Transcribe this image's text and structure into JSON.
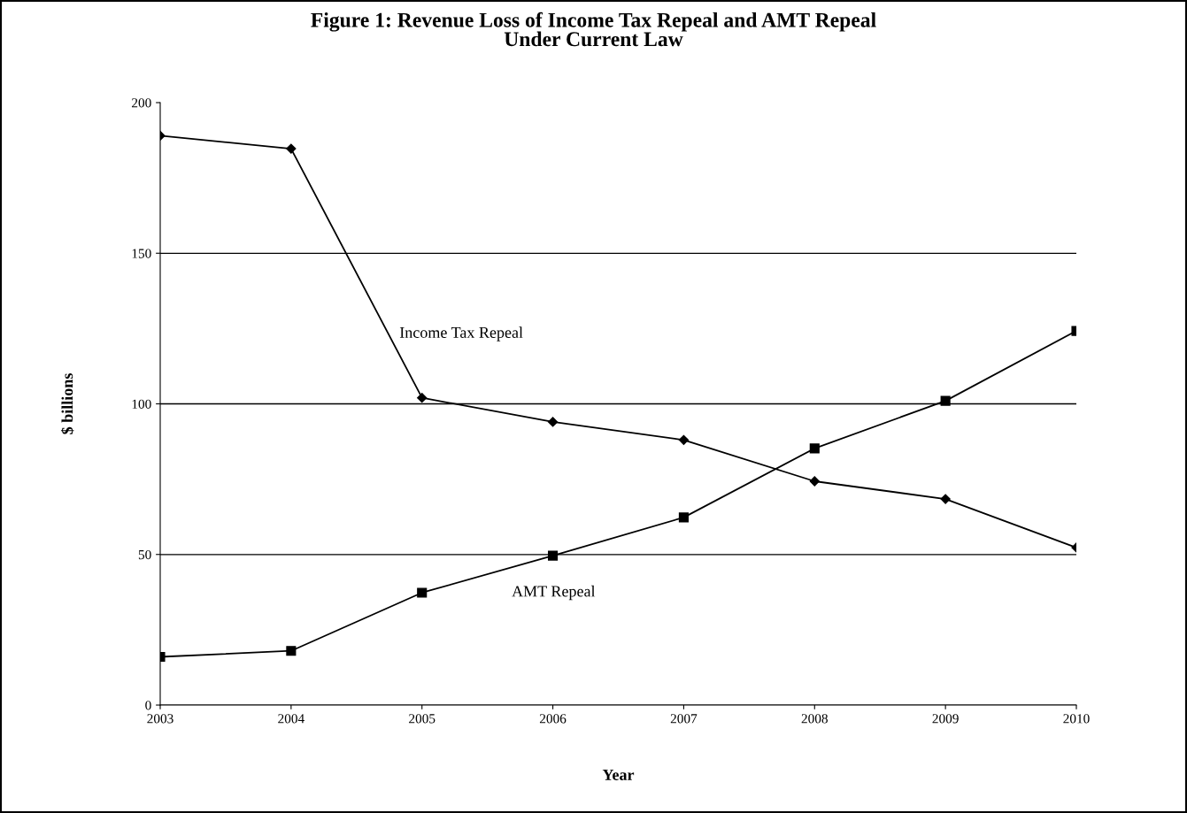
{
  "chart_data": {
    "type": "line",
    "title": "Figure 1: Revenue Loss of Income Tax Repeal and AMT Repeal\nUnder Current Law",
    "xlabel": "Year",
    "ylabel": "$ billions",
    "x": [
      2003,
      2004,
      2005,
      2006,
      2007,
      2008,
      2009,
      2010
    ],
    "series": [
      {
        "name": "Income Tax Repeal",
        "color": "#000000",
        "marker": "diamond",
        "values": [
          189,
          184.7,
          102,
          94,
          88,
          74.3,
          68.4,
          52.3
        ]
      },
      {
        "name": "AMT Repeal",
        "color": "#000000",
        "marker": "square",
        "values": [
          16,
          18,
          37.3,
          49.6,
          62.3,
          85.2,
          101,
          124.2
        ]
      }
    ],
    "xlim": [
      2003,
      2010
    ],
    "xticks": [
      2003,
      2004,
      2005,
      2006,
      2007,
      2008,
      2009,
      2010
    ],
    "ylim": [
      0,
      200
    ],
    "yticks": [
      0,
      50,
      100,
      150,
      200
    ],
    "grid": "y",
    "legend": false,
    "line_style": "solid"
  }
}
